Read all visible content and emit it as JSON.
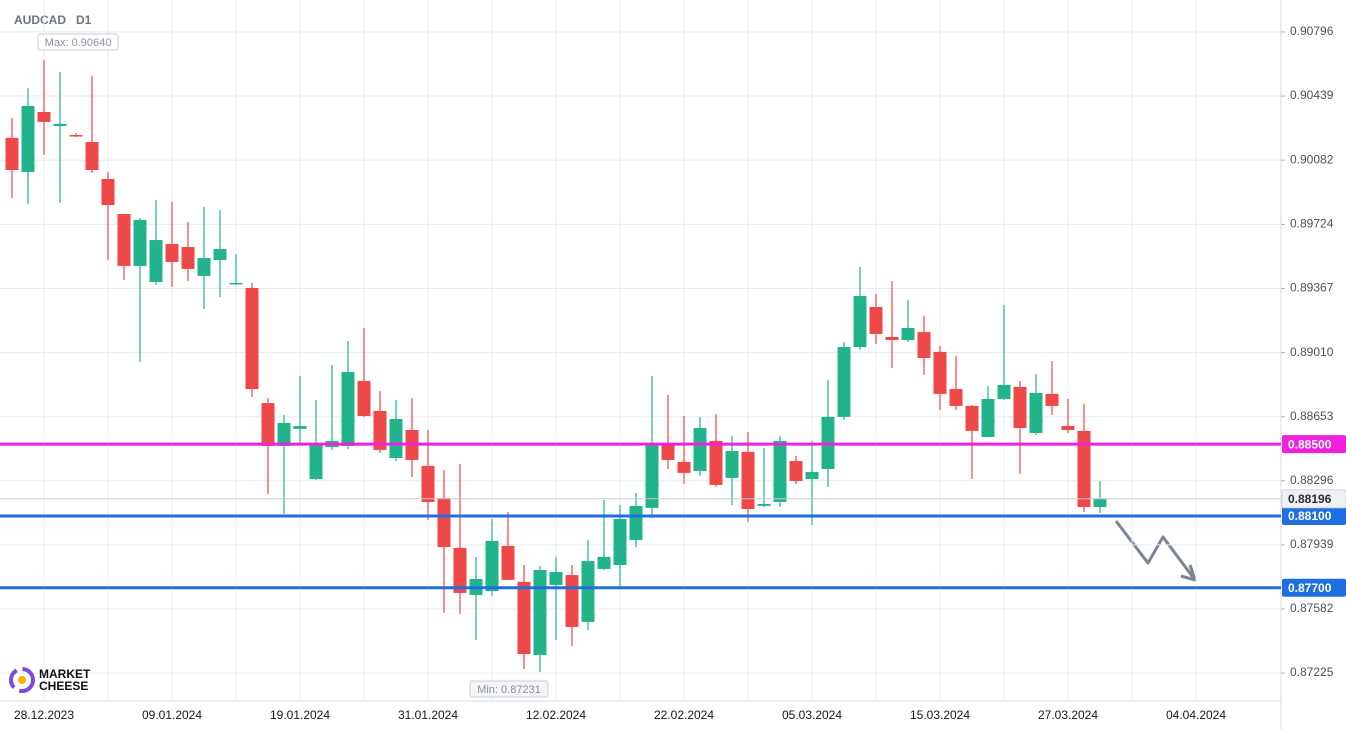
{
  "chart_data": {
    "type": "candlestick",
    "title": "AUDCAD",
    "timeframe": "D1",
    "categories": [
      null,
      null,
      "28.12.2023",
      null,
      null,
      null,
      null,
      null,
      null,
      null,
      "09.01.2024",
      null,
      null,
      null,
      null,
      null,
      null,
      null,
      "19.01.2024",
      null,
      null,
      null,
      null,
      null,
      null,
      null,
      "31.01.2024",
      null,
      null,
      null,
      null,
      null,
      null,
      null,
      "12.02.2024",
      null,
      null,
      null,
      null,
      null,
      null,
      null,
      "22.02.2024",
      null,
      null,
      null,
      null,
      null,
      null,
      null,
      "05.03.2024",
      null,
      null,
      null,
      null,
      null,
      null,
      null,
      "15.03.2024",
      null,
      null,
      null,
      null,
      null,
      null,
      null,
      "27.03.2024",
      null,
      null,
      null,
      null,
      null,
      null,
      null,
      "04.04.2024"
    ],
    "open": [
      0.90206,
      0.90016,
      0.9035,
      0.90272,
      0.90222,
      0.90183,
      0.89977,
      0.89782,
      0.89493,
      0.89403,
      0.89615,
      0.89598,
      0.89437,
      0.89526,
      0.89392,
      0.8937,
      0.88729,
      0.8849,
      0.88585,
      0.88306,
      0.88484,
      0.8849,
      0.88852,
      0.88685,
      0.88423,
      0.88579,
      0.88379,
      0.882,
      0.87922,
      0.8766,
      0.87682,
      0.87933,
      0.87733,
      0.87326,
      0.87716,
      0.87771,
      0.8751,
      0.87805,
      0.87827,
      0.87966,
      0.88145,
      0.88501,
      0.88401,
      0.88351,
      0.88518,
      0.88312,
      0.88457,
      0.88156,
      0.88178,
      0.88406,
      0.88306,
      0.88362,
      0.88652,
      0.89041,
      0.89264,
      0.89097,
      0.8908,
      0.89125,
      0.89014,
      0.88807,
      0.88713,
      0.8854,
      0.88752,
      0.88819,
      0.88562,
      0.8878,
      0.88601,
      0.88574,
      0.8815,
      null,
      null,
      null,
      null,
      null,
      null
    ],
    "high": [
      0.90317,
      0.90484,
      0.9064,
      0.90573,
      0.90233,
      0.90551,
      0.90016,
      0.89782,
      0.8976,
      0.8986,
      0.89849,
      0.89738,
      0.89821,
      0.89805,
      0.89559,
      0.89398,
      0.88757,
      0.88663,
      0.8888,
      0.88746,
      0.88941,
      0.89075,
      0.89147,
      0.88796,
      0.88746,
      0.88757,
      0.88579,
      0.88356,
      0.8839,
      0.87872,
      0.88083,
      0.88122,
      0.87827,
      0.87822,
      0.87872,
      0.87827,
      0.87966,
      0.88189,
      0.88161,
      0.88228,
      0.8888,
      0.88774,
      0.88657,
      0.88652,
      0.88668,
      0.88546,
      0.88568,
      0.88479,
      0.88546,
      0.88434,
      0.88518,
      0.88858,
      0.89069,
      0.89487,
      0.89337,
      0.89409,
      0.89303,
      0.89214,
      0.89047,
      0.88991,
      0.88718,
      0.88824,
      0.89275,
      0.88852,
      0.88891,
      0.88963,
      0.88752,
      0.88724,
      0.88295,
      null,
      null,
      null,
      null,
      null,
      null
    ],
    "low": [
      0.89871,
      0.89838,
      0.90111,
      0.89844,
      0.90211,
      0.90011,
      0.89526,
      0.89415,
      0.88958,
      0.89387,
      0.89376,
      0.89409,
      0.89253,
      0.8932,
      0.89387,
      0.88763,
      0.88223,
      0.88111,
      0.88507,
      0.88301,
      0.88468,
      0.88473,
      0.88652,
      0.88451,
      0.88406,
      0.88317,
      0.88078,
      0.8756,
      0.87554,
      0.87409,
      0.87654,
      0.87744,
      0.87248,
      0.87231,
      0.87409,
      0.87376,
      0.87465,
      0.87799,
      0.87705,
      0.87927,
      0.88089,
      0.88362,
      0.88278,
      0.88323,
      0.88262,
      0.88161,
      0.88067,
      0.8815,
      0.8815,
      0.88278,
      0.8805,
      0.88262,
      0.88635,
      0.89025,
      0.89058,
      0.88924,
      0.89069,
      0.88885,
      0.8869,
      0.8869,
      0.88306,
      0.8854,
      0.88746,
      0.88334,
      0.88551,
      0.88663,
      0.88562,
      0.88122,
      0.88117,
      null,
      null,
      null,
      null,
      null,
      null
    ],
    "close": [
      0.90027,
      0.90384,
      0.90295,
      0.90284,
      0.90217,
      0.90027,
      0.89832,
      0.89493,
      0.89749,
      0.89637,
      0.89515,
      0.89476,
      0.89537,
      0.89587,
      0.89398,
      0.88807,
      0.8849,
      0.88618,
      0.88601,
      0.88496,
      0.88518,
      0.88902,
      0.88657,
      0.88468,
      0.8864,
      0.88412,
      0.88178,
      0.87927,
      0.87671,
      0.87749,
      0.87961,
      0.87744,
      0.87331,
      0.87799,
      0.87788,
      0.87482,
      0.87849,
      0.87872,
      0.88083,
      0.88156,
      0.88501,
      0.88412,
      0.8834,
      0.8859,
      0.88273,
      0.88462,
      0.88139,
      0.88167,
      0.88518,
      0.88295,
      0.88345,
      0.88652,
      0.89041,
      0.89325,
      0.89114,
      0.8908,
      0.89147,
      0.8898,
      0.8878,
      0.88713,
      0.88574,
      0.88752,
      0.8883,
      0.8859,
      0.88785,
      0.88713,
      0.88579,
      0.8815,
      0.88196,
      null,
      null,
      null,
      null,
      null,
      null
    ],
    "up_color": "#20b38c",
    "down_color": "#ef4848",
    "ylim": [
      0.87075,
      0.90974
    ],
    "yticks": [
      0.90796,
      0.90439,
      0.90082,
      0.89724,
      0.89367,
      {
        "value": 0.8901,
        "label": "0.89010"
      },
      0.88653,
      0.88296,
      0.87939,
      0.87582,
      0.87225
    ],
    "grid": true,
    "levels": [
      {
        "value": 0.885,
        "label": "0.88500",
        "color": "#ee22dd"
      },
      {
        "value": 0.881,
        "label": "0.88100",
        "color": "#1f6fe0"
      },
      {
        "value": 0.877,
        "label": "0.87700",
        "color": "#1f6fe0"
      }
    ],
    "last_price": 0.88196,
    "max_label": "Max: 0.90640",
    "min_label": "Min: 0.87231",
    "logo": [
      "MARKET",
      "CHEESE"
    ]
  }
}
